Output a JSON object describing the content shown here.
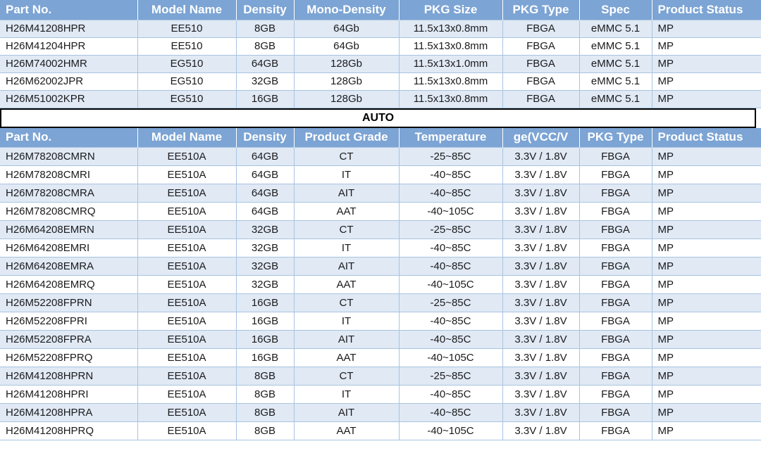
{
  "colors": {
    "header_bg": "#7CA4D4",
    "band_bg": "#E0E9F4",
    "grid_line": "#A8C4E1",
    "separator_border": "#000000",
    "header_text": "#FFFFFF",
    "cell_text": "#1B1B1D"
  },
  "separator": {
    "label": "AUTO"
  },
  "table1": {
    "columns": [
      {
        "label": "Part No.",
        "align": "left"
      },
      {
        "label": "Model Name",
        "align": "center"
      },
      {
        "label": "Density",
        "align": "center"
      },
      {
        "label": "Mono-Density",
        "align": "center"
      },
      {
        "label": "PKG Size",
        "align": "center"
      },
      {
        "label": "PKG Type",
        "align": "center"
      },
      {
        "label": "Spec",
        "align": "center"
      },
      {
        "label": "Product Status",
        "align": "left"
      }
    ],
    "rows": [
      [
        "H26M41208HPR",
        "EE510",
        "8GB",
        "64Gb",
        "11.5x13x0.8mm",
        "FBGA",
        "eMMC 5.1",
        "MP"
      ],
      [
        "H26M41204HPR",
        "EE510",
        "8GB",
        "64Gb",
        "11.5x13x0.8mm",
        "FBGA",
        "eMMC 5.1",
        "MP"
      ],
      [
        "H26M74002HMR",
        "EG510",
        "64GB",
        "128Gb",
        "11.5x13x1.0mm",
        "FBGA",
        "eMMC 5.1",
        "MP"
      ],
      [
        "H26M62002JPR",
        "EG510",
        "32GB",
        "128Gb",
        "11.5x13x0.8mm",
        "FBGA",
        "eMMC 5.1",
        "MP"
      ],
      [
        "H26M51002KPR",
        "EG510",
        "16GB",
        "128Gb",
        "11.5x13x0.8mm",
        "FBGA",
        "eMMC 5.1",
        "MP"
      ]
    ]
  },
  "table2": {
    "columns": [
      {
        "label": "Part No.",
        "align": "left"
      },
      {
        "label": "Model Name",
        "align": "center"
      },
      {
        "label": "Density",
        "align": "center"
      },
      {
        "label": "Product Grade",
        "align": "center"
      },
      {
        "label": "Temperature",
        "align": "center"
      },
      {
        "label": "ge(VCC/V",
        "align": "center"
      },
      {
        "label": "PKG Type",
        "align": "center"
      },
      {
        "label": "Product Status",
        "align": "left"
      }
    ],
    "rows": [
      [
        "H26M78208CMRN",
        "EE510A",
        "64GB",
        "CT",
        "-25~85C",
        "3.3V / 1.8V",
        "FBGA",
        "MP"
      ],
      [
        "H26M78208CMRI",
        "EE510A",
        "64GB",
        "IT",
        "-40~85C",
        "3.3V / 1.8V",
        "FBGA",
        "MP"
      ],
      [
        "H26M78208CMRA",
        "EE510A",
        "64GB",
        "AIT",
        "-40~85C",
        "3.3V / 1.8V",
        "FBGA",
        "MP"
      ],
      [
        "H26M78208CMRQ",
        "EE510A",
        "64GB",
        "AAT",
        "-40~105C",
        "3.3V / 1.8V",
        "FBGA",
        "MP"
      ],
      [
        "H26M64208EMRN",
        "EE510A",
        "32GB",
        "CT",
        "-25~85C",
        "3.3V / 1.8V",
        "FBGA",
        "MP"
      ],
      [
        "H26M64208EMRI",
        "EE510A",
        "32GB",
        "IT",
        "-40~85C",
        "3.3V / 1.8V",
        "FBGA",
        "MP"
      ],
      [
        "H26M64208EMRA",
        "EE510A",
        "32GB",
        "AIT",
        "-40~85C",
        "3.3V / 1.8V",
        "FBGA",
        "MP"
      ],
      [
        "H26M64208EMRQ",
        "EE510A",
        "32GB",
        "AAT",
        "-40~105C",
        "3.3V / 1.8V",
        "FBGA",
        "MP"
      ],
      [
        "H26M52208FPRN",
        "EE510A",
        "16GB",
        "CT",
        "-25~85C",
        "3.3V / 1.8V",
        "FBGA",
        "MP"
      ],
      [
        "H26M52208FPRI",
        "EE510A",
        "16GB",
        "IT",
        "-40~85C",
        "3.3V / 1.8V",
        "FBGA",
        "MP"
      ],
      [
        "H26M52208FPRA",
        "EE510A",
        "16GB",
        "AIT",
        "-40~85C",
        "3.3V / 1.8V",
        "FBGA",
        "MP"
      ],
      [
        "H26M52208FPRQ",
        "EE510A",
        "16GB",
        "AAT",
        "-40~105C",
        "3.3V / 1.8V",
        "FBGA",
        "MP"
      ],
      [
        "H26M41208HPRN",
        "EE510A",
        "8GB",
        "CT",
        "-25~85C",
        "3.3V / 1.8V",
        "FBGA",
        "MP"
      ],
      [
        "H26M41208HPRI",
        "EE510A",
        "8GB",
        "IT",
        "-40~85C",
        "3.3V / 1.8V",
        "FBGA",
        "MP"
      ],
      [
        "H26M41208HPRA",
        "EE510A",
        "8GB",
        "AIT",
        "-40~85C",
        "3.3V / 1.8V",
        "FBGA",
        "MP"
      ],
      [
        "H26M41208HPRQ",
        "EE510A",
        "8GB",
        "AAT",
        "-40~105C",
        "3.3V / 1.8V",
        "FBGA",
        "MP"
      ]
    ]
  }
}
